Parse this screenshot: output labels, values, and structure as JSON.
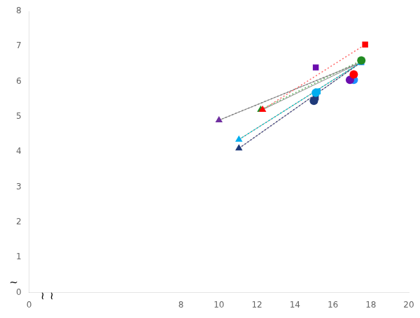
{
  "chart_data": {
    "type": "scatter",
    "xlim": [
      0,
      20
    ],
    "ylim": [
      0,
      8
    ],
    "xticks": [
      0,
      8,
      10,
      12,
      14,
      16,
      18,
      20
    ],
    "yticks": [
      0,
      1,
      2,
      3,
      4,
      5,
      6,
      7,
      8
    ],
    "grid": false,
    "annotations": [
      {
        "text": "~",
        "x": 0,
        "y": 0
      },
      {
        "text": "~",
        "x": 0,
        "y": 0
      },
      {
        "text": "~",
        "x": 0,
        "y": 0
      }
    ],
    "series": [
      {
        "type": "line",
        "x": [
          10.0,
          17.5
        ],
        "values": [
          4.9,
          6.55
        ],
        "color": "#888888",
        "line_style": "solid"
      },
      {
        "type": "line",
        "x": [
          12.3,
          17.5
        ],
        "values": [
          5.2,
          6.55
        ],
        "color": "#888888",
        "line_style": "solid"
      },
      {
        "type": "line",
        "x": [
          11.05,
          17.5
        ],
        "values": [
          4.35,
          6.55
        ],
        "color": "#888888",
        "line_style": "solid"
      },
      {
        "type": "line",
        "x": [
          11.05,
          17.5
        ],
        "values": [
          4.1,
          6.55
        ],
        "color": "#888888",
        "line_style": "solid"
      },
      {
        "type": "line",
        "x": [
          10.0,
          17.5
        ],
        "values": [
          4.9,
          6.55
        ],
        "color": "#808080",
        "line_style": "dotted"
      },
      {
        "type": "line",
        "x": [
          12.3,
          17.7
        ],
        "values": [
          5.2,
          7.05
        ],
        "color": "#FF6666",
        "line_style": "dotted"
      },
      {
        "type": "line",
        "x": [
          12.2,
          17.5
        ],
        "values": [
          5.2,
          6.6
        ],
        "color": "#66BB66",
        "line_style": "dotted"
      },
      {
        "type": "line",
        "x": [
          11.05,
          17.5
        ],
        "values": [
          4.35,
          6.55
        ],
        "color": "#00CCCC",
        "line_style": "dotted"
      },
      {
        "type": "line",
        "x": [
          11.05,
          17.5
        ],
        "values": [
          4.1,
          6.55
        ],
        "color": "#444488",
        "line_style": "dotted"
      },
      {
        "type": "scatter",
        "x": [
          10.0
        ],
        "values": [
          4.9
        ],
        "color": "#7030A0",
        "marker": "triangle"
      },
      {
        "type": "scatter",
        "x": [
          12.3
        ],
        "values": [
          5.2
        ],
        "color": "#FF0000",
        "marker": "triangle"
      },
      {
        "type": "scatter",
        "x": [
          12.2
        ],
        "values": [
          5.2
        ],
        "color": "#228B22",
        "marker": "triangle"
      },
      {
        "type": "scatter",
        "x": [
          11.05
        ],
        "values": [
          4.35
        ],
        "color": "#00AEEF",
        "marker": "triangle"
      },
      {
        "type": "scatter",
        "x": [
          11.05
        ],
        "values": [
          4.1
        ],
        "color": "#1F3A7A",
        "marker": "triangle"
      },
      {
        "type": "scatter",
        "x": [
          17.7
        ],
        "values": [
          7.05
        ],
        "color": "#FF0000",
        "marker": "square"
      },
      {
        "type": "scatter",
        "x": [
          17.5
        ],
        "values": [
          6.6
        ],
        "color": "#228B22",
        "marker": "circle"
      },
      {
        "type": "scatter",
        "x": [
          17.5
        ],
        "values": [
          6.55
        ],
        "color": "#1E90FF",
        "marker": "square"
      },
      {
        "type": "scatter",
        "x": [
          15.1
        ],
        "values": [
          6.4
        ],
        "color": "#6A0DAD",
        "marker": "square"
      },
      {
        "type": "scatter",
        "x": [
          17.1
        ],
        "values": [
          6.2
        ],
        "color": "#FF0000",
        "marker": "circle"
      },
      {
        "type": "scatter",
        "x": [
          16.9
        ],
        "values": [
          6.05
        ],
        "color": "#6A0DAD",
        "marker": "circle"
      },
      {
        "type": "scatter",
        "x": [
          17.1
        ],
        "values": [
          6.05
        ],
        "color": "#1E90FF",
        "marker": "circle"
      },
      {
        "type": "scatter",
        "x": [
          15.2
        ],
        "values": [
          5.72
        ],
        "color": "#00AEEF",
        "marker": "square"
      },
      {
        "type": "scatter",
        "x": [
          15.1
        ],
        "values": [
          5.68
        ],
        "color": "#00AEEF",
        "marker": "circle"
      },
      {
        "type": "scatter",
        "x": [
          15.1
        ],
        "values": [
          5.55
        ],
        "color": "#1F3A7A",
        "marker": "square"
      },
      {
        "type": "scatter",
        "x": [
          15.0
        ],
        "values": [
          5.45
        ],
        "color": "#1F3A7A",
        "marker": "circle"
      }
    ]
  }
}
